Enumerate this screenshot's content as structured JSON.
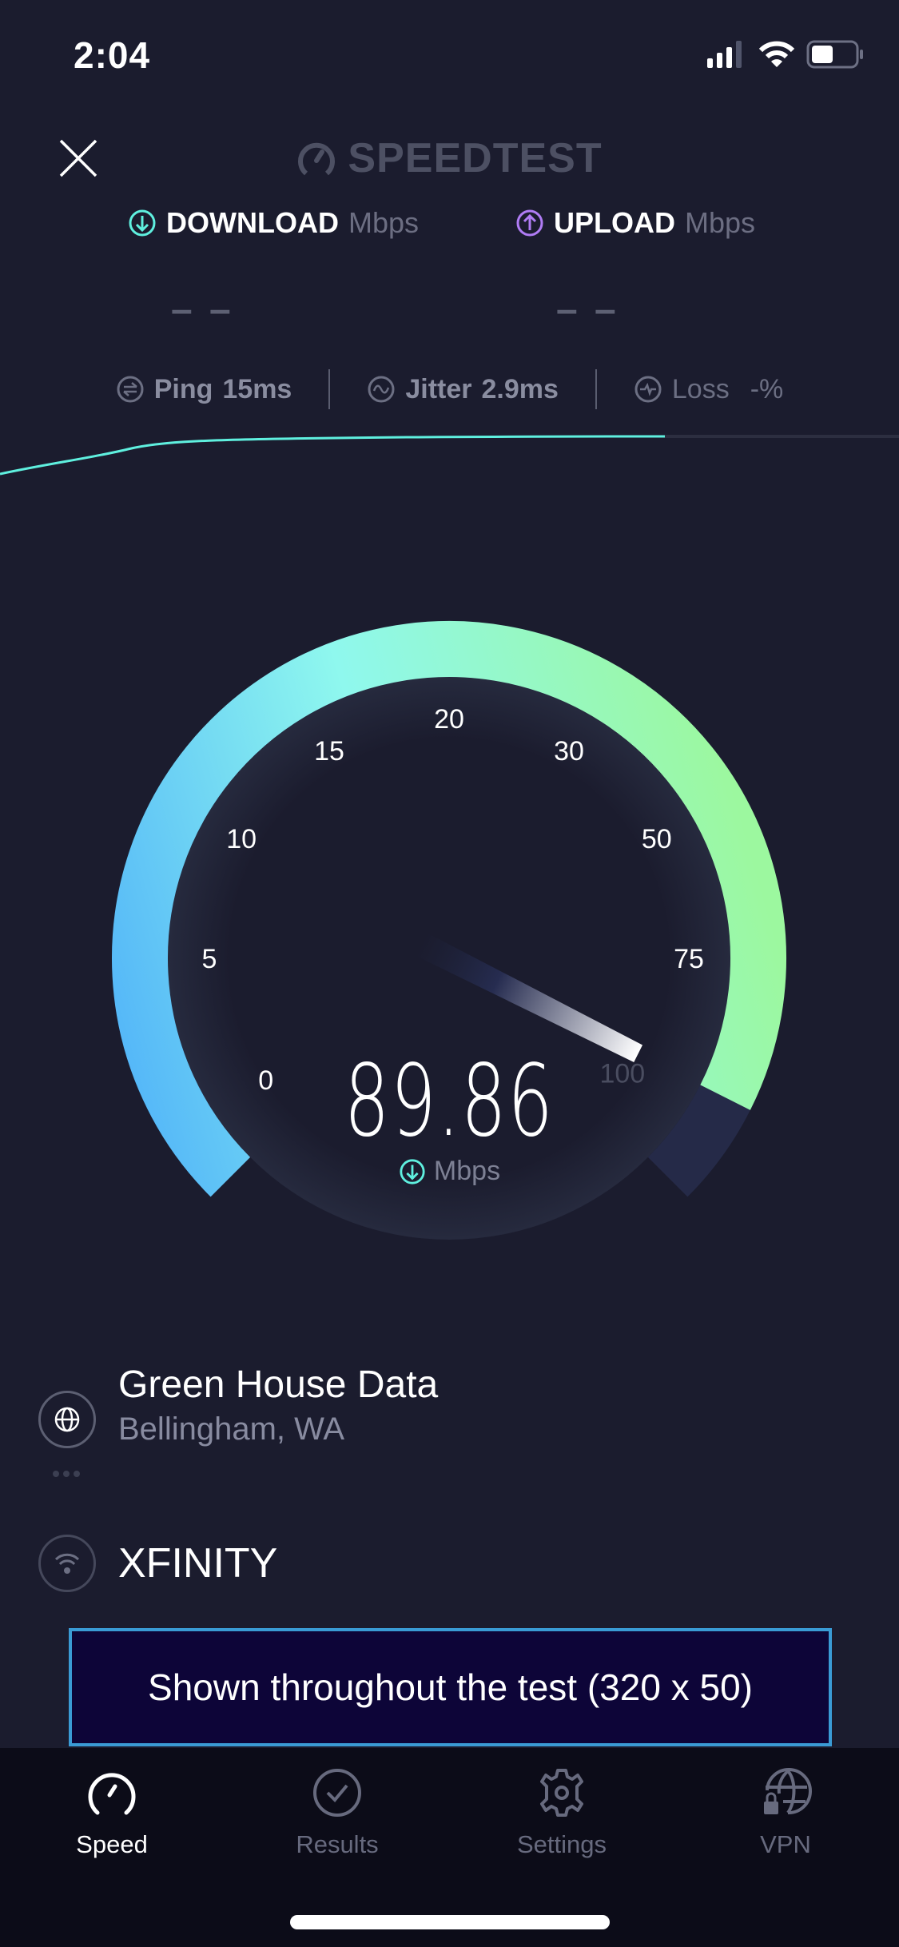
{
  "status_bar": {
    "time": "2:04",
    "battery_level": 0.45
  },
  "header": {
    "logo": "SPEEDTEST",
    "close_icon": "close-icon"
  },
  "metrics": {
    "download": {
      "label": "DOWNLOAD",
      "unit": "Mbps",
      "value": "– –",
      "color": "#5ff0df"
    },
    "upload": {
      "label": "UPLOAD",
      "unit": "Mbps",
      "value": "– –",
      "color": "#b07cf5"
    }
  },
  "stats": {
    "ping": {
      "label": "Ping",
      "value": "15",
      "unit": "ms"
    },
    "jitter": {
      "label": "Jitter",
      "value": "2.9",
      "unit": "ms"
    },
    "loss": {
      "label": "Loss",
      "value": "-",
      "unit": "%"
    }
  },
  "gauge": {
    "value": 89.86,
    "value_text": "89.86",
    "unit": "Mbps",
    "ticks": [
      "0",
      "5",
      "10",
      "15",
      "20",
      "30",
      "50",
      "75",
      "100"
    ],
    "colors": {
      "start": "#4fb1f9",
      "mid": "#8ff8ee",
      "end": "#9cf89f",
      "track": "#252a48"
    }
  },
  "server": {
    "name": "Green House Data",
    "location": "Bellingham, WA"
  },
  "provider": {
    "name": "XFINITY"
  },
  "ad": {
    "text": "Shown throughout the test (320 x 50)"
  },
  "tabs": [
    {
      "label": "Speed",
      "icon": "speedometer-icon",
      "active": true
    },
    {
      "label": "Results",
      "icon": "check-circle-icon"
    },
    {
      "label": "Settings",
      "icon": "gear-icon"
    },
    {
      "label": "VPN",
      "icon": "globe-lock-icon"
    }
  ]
}
